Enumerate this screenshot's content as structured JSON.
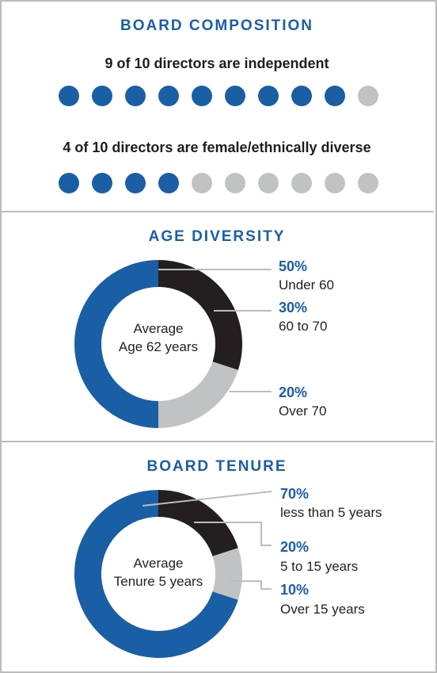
{
  "colors": {
    "blue": "#1a5ea5",
    "black": "#231f20",
    "gray": "#c1c2c4",
    "title": "#1a5ea5"
  },
  "composition": {
    "title": "BOARD COMPOSITION",
    "independent": {
      "text": "9 of 10 directors are independent",
      "filled": 9,
      "total": 10
    },
    "diverse": {
      "text": "4 of 10 directors are female/ethnically diverse",
      "filled": 4,
      "total": 10
    }
  },
  "age": {
    "title": "AGE DIVERSITY",
    "center_line1": "Average",
    "center_line2": "Age 62 years",
    "legend": [
      {
        "pct": "50%",
        "label": "Under 60"
      },
      {
        "pct": "30%",
        "label": "60 to 70"
      },
      {
        "pct": "20%",
        "label": "Over 70"
      }
    ]
  },
  "tenure": {
    "title": "BOARD TENURE",
    "center_line1": "Average",
    "center_line2": "Tenure 5 years",
    "legend": [
      {
        "pct": "70%",
        "label": "less than 5 years"
      },
      {
        "pct": "20%",
        "label": "5 to 15 years"
      },
      {
        "pct": "10%",
        "label": "Over 15 years"
      }
    ]
  },
  "chart_data": [
    {
      "type": "pie",
      "title": "AGE DIVERSITY",
      "categories": [
        "Under 60",
        "60 to 70",
        "Over 70"
      ],
      "values": [
        50,
        30,
        20
      ],
      "colors": [
        "#1a5ea5",
        "#231f20",
        "#c1c2c4"
      ]
    },
    {
      "type": "pie",
      "title": "BOARD TENURE",
      "categories": [
        "less than 5 years",
        "5 to 15 years",
        "Over 15 years"
      ],
      "values": [
        70,
        20,
        10
      ],
      "colors": [
        "#1a5ea5",
        "#231f20",
        "#c1c2c4"
      ]
    }
  ]
}
